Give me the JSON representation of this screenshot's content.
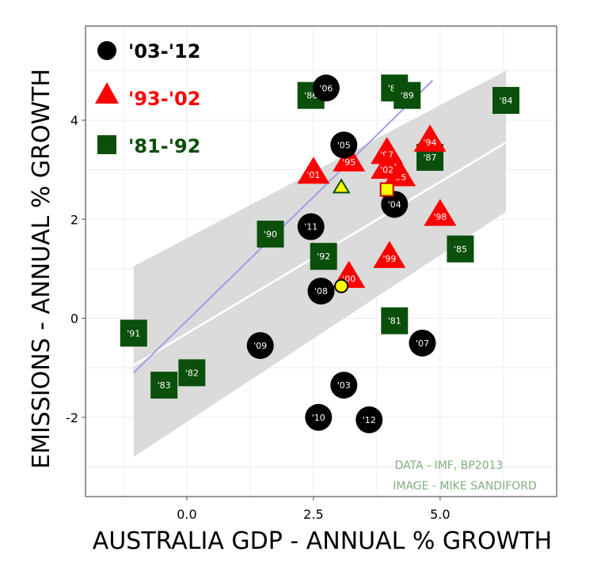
{
  "chart_data": {
    "type": "scatter",
    "xlabel": "AUSTRALIA GDP - ANNUAL % GROWTH",
    "ylabel": "EMISSIONS - ANNUAL % GROWTH",
    "xlim": [
      -2.0,
      7.3
    ],
    "ylim": [
      -3.6,
      5.9
    ],
    "x_ticks": [
      0.0,
      2.5,
      5.0
    ],
    "x_tick_labels": [
      "0.0",
      "2.5",
      "5.0"
    ],
    "y_ticks": [
      -2,
      0,
      2,
      4
    ],
    "y_tick_labels": [
      "-2",
      "0",
      "2",
      "4"
    ],
    "grid": true,
    "legend_placement": "top-left",
    "credits": [
      "DATA - IMF, BP2013",
      "IMAGE - MIKE SANDIFORD"
    ],
    "colors": {
      "s03_12": "#000000",
      "s93_02": "#ff0000",
      "s81_92": "#0a4f0a",
      "fit": "#ffffff",
      "band": "#d9d9d9",
      "blue_line": "#9e9ee6",
      "highlight": "#ffff00"
    },
    "series": [
      {
        "name": "'03-'12",
        "marker": "circle",
        "color": "#000000",
        "points": [
          {
            "label": "'03",
            "x": 3.1,
            "y": -1.35
          },
          {
            "label": "'04",
            "x": 4.1,
            "y": 2.3
          },
          {
            "label": "'05",
            "x": 3.1,
            "y": 3.5
          },
          {
            "label": "'06",
            "x": 2.75,
            "y": 4.65
          },
          {
            "label": "'07",
            "x": 4.65,
            "y": -0.5
          },
          {
            "label": "'08",
            "x": 2.65,
            "y": 0.55
          },
          {
            "label": "'09",
            "x": 1.45,
            "y": -0.55
          },
          {
            "label": "'10",
            "x": 2.6,
            "y": -2.0
          },
          {
            "label": "'11",
            "x": 2.45,
            "y": 1.85
          },
          {
            "label": "'12",
            "x": 3.6,
            "y": -2.05
          }
        ]
      },
      {
        "name": "'93-'02",
        "marker": "triangle",
        "color": "#ff0000",
        "points": [
          {
            "label": "'94",
            "x": 4.8,
            "y": 3.6
          },
          {
            "label": "'95",
            "x": 3.2,
            "y": 3.2
          },
          {
            "label": "'96",
            "x": 4.2,
            "y": 2.9
          },
          {
            "label": "'97",
            "x": 3.95,
            "y": 3.35
          },
          {
            "label": "'98",
            "x": 5.0,
            "y": 2.1
          },
          {
            "label": "'99",
            "x": 4.0,
            "y": 1.25
          },
          {
            "label": "'00",
            "x": 3.2,
            "y": 0.85
          },
          {
            "label": "'01",
            "x": 2.5,
            "y": 2.95
          },
          {
            "label": "'02",
            "x": 3.95,
            "y": 3.05
          }
        ]
      },
      {
        "name": "'81-'92",
        "marker": "square",
        "color": "#0a4f0a",
        "points": [
          {
            "label": "'81",
            "x": 4.1,
            "y": -0.05
          },
          {
            "label": "'82",
            "x": 0.1,
            "y": -1.1
          },
          {
            "label": "'83",
            "x": -0.45,
            "y": -1.35
          },
          {
            "label": "'84",
            "x": 6.3,
            "y": 4.4
          },
          {
            "label": "'85",
            "x": 5.4,
            "y": 1.4
          },
          {
            "label": "'86",
            "x": 2.45,
            "y": 4.5
          },
          {
            "label": "'87",
            "x": 4.8,
            "y": 3.25
          },
          {
            "label": "'88",
            "x": 4.1,
            "y": 4.65
          },
          {
            "label": "'89",
            "x": 4.35,
            "y": 4.5
          },
          {
            "label": "'90",
            "x": 1.65,
            "y": 1.7
          },
          {
            "label": "'91",
            "x": -1.05,
            "y": -0.3
          },
          {
            "label": "'92",
            "x": 2.7,
            "y": 1.25
          }
        ]
      }
    ],
    "averages": [
      {
        "series": "'03-'12",
        "marker": "circle",
        "x": 3.05,
        "y": 0.65
      },
      {
        "series": "'93-'02",
        "marker": "triangle",
        "x": 3.05,
        "y": 2.65
      },
      {
        "series": "'81-'92",
        "marker": "square",
        "x": 3.95,
        "y": 2.6
      }
    ],
    "fit_line": {
      "x": [
        -1.05,
        6.3
      ],
      "y": [
        -0.95,
        3.55
      ]
    },
    "confidence_band": {
      "x": [
        -1.05,
        6.3
      ],
      "upper": [
        1.05,
        5.0
      ],
      "lower": [
        -2.8,
        2.15
      ]
    },
    "blue_line": {
      "x": [
        -1.05,
        4.85
      ],
      "y": [
        -1.1,
        4.8
      ]
    }
  }
}
